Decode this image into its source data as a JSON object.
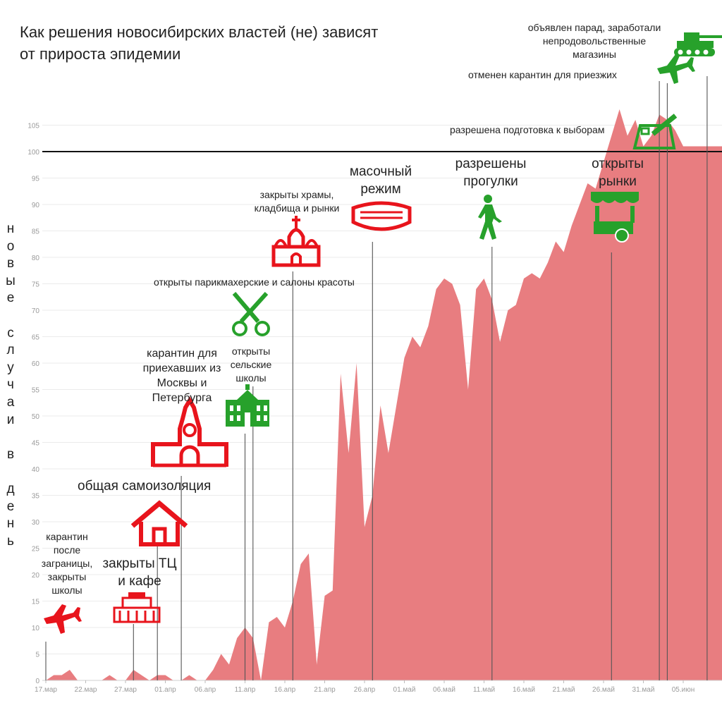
{
  "chart_data": {
    "type": "area",
    "title": "Как решения новосибирских властей (не) зависят от прироста эпидемии",
    "title_lines": [
      "Как решения новосибирских властей (не) зависят",
      "от прироста эпидемии"
    ],
    "ylabel": "новые случаи в день",
    "ylabel_vertical": "н\nо\nв\nы\nе\n \nс\nл\nу\nч\nа\nи\n \nв\n \nд\nе\nн\nь",
    "xlabel": "",
    "x_tick_labels": [
      "17.мар",
      "22.мар",
      "27.мар",
      "01.апр",
      "06.апр",
      "11.апр",
      "16.апр",
      "21.апр",
      "26.апр",
      "01.май",
      "06.май",
      "11.май",
      "16.май",
      "21.май",
      "26.май",
      "31.май",
      "05.июн"
    ],
    "y_tick_labels": [
      "0",
      "5",
      "10",
      "15",
      "20",
      "25",
      "30",
      "35",
      "40",
      "45",
      "50",
      "55",
      "60",
      "65",
      "70",
      "75",
      "80",
      "85",
      "90",
      "95",
      "100",
      "105"
    ],
    "ylim": [
      0,
      105
    ],
    "reference_line": 100,
    "grid": true,
    "area_color": "#e87d80",
    "x_start_date": "17.мар",
    "values": [
      0,
      1,
      1,
      2,
      0,
      0,
      0,
      0,
      1,
      0,
      0,
      2,
      1,
      0,
      1,
      1,
      0,
      0,
      1,
      0,
      0,
      2,
      5,
      3,
      8,
      10,
      8,
      0,
      11,
      12,
      10,
      15,
      22,
      24,
      3,
      16,
      17,
      58,
      43,
      60,
      29,
      35,
      52,
      43,
      52,
      61,
      65,
      63,
      67,
      74,
      76,
      75,
      71,
      55,
      74,
      76,
      72,
      64,
      70,
      71,
      76,
      77,
      76,
      79,
      83,
      81,
      86,
      90,
      94,
      93,
      98,
      103,
      108,
      103,
      106,
      101,
      103,
      107,
      106,
      104,
      101
    ]
  },
  "annotations": [
    {
      "id": "arrival-quarantine",
      "text": "карантин\nпосле\nзаграницы,\nзакрыты\nшколы",
      "icon": "airplane-icon",
      "date": "17.мар",
      "color": "#e8141c"
    },
    {
      "id": "malls-closed",
      "text": "закрыты ТЦ\nи кафе",
      "icon": "mall-icon",
      "date": "27.мар",
      "color": "#e8141c"
    },
    {
      "id": "self-isolation",
      "text": "общая самоизоляция",
      "icon": "house-icon",
      "date": "30.мар",
      "color": "#e8141c"
    },
    {
      "id": "moscow-quarantine",
      "text": "карантин для\nприехавших из\nМосквы и\nПетербурга",
      "icon": "kremlin-icon",
      "date": "03.апр",
      "color": "#e8141c"
    },
    {
      "id": "rural-schools",
      "text": "открыты\nсельские\nшколы",
      "icon": "school-icon",
      "date": "10.апр",
      "color": "#27a12b"
    },
    {
      "id": "salons-open",
      "text": "открыты парикмахерские и салоны красоты",
      "icon": "scissors-icon",
      "date": "11.апр",
      "color": "#27a12b"
    },
    {
      "id": "temples-closed",
      "text": "закрыты храмы,\nкладбища и рынки",
      "icon": "church-icon",
      "date": "15.апр",
      "color": "#e8141c"
    },
    {
      "id": "mask-regime",
      "text": "масочный\nрежим",
      "icon": "mask-icon",
      "date": "26.апр",
      "color": "#e8141c"
    },
    {
      "id": "walks-allowed",
      "text": "разрешены\nпрогулки",
      "icon": "walking-person-icon",
      "date": "11.май",
      "color": "#27a12b"
    },
    {
      "id": "markets-open",
      "text": "открыты\nрынки",
      "icon": "market-cart-icon",
      "date": "26.май",
      "color": "#27a12b"
    },
    {
      "id": "elections-prep",
      "text": "разрешена подготовка к выборам",
      "icon": "ballot-icon",
      "date": "31.май",
      "color": "#27a12b"
    },
    {
      "id": "arrivals-quarantine-lifted",
      "text": "отменен карантин для приезжих",
      "icon": "airplane-icon",
      "date": "01.июн",
      "color": "#27a12b"
    },
    {
      "id": "parade-announced",
      "text": "объявлен парад, заработали\nнепродовольственные\nмагазины",
      "icon": "tank-icon",
      "date": "06.июн",
      "color": "#27a12b"
    }
  ]
}
